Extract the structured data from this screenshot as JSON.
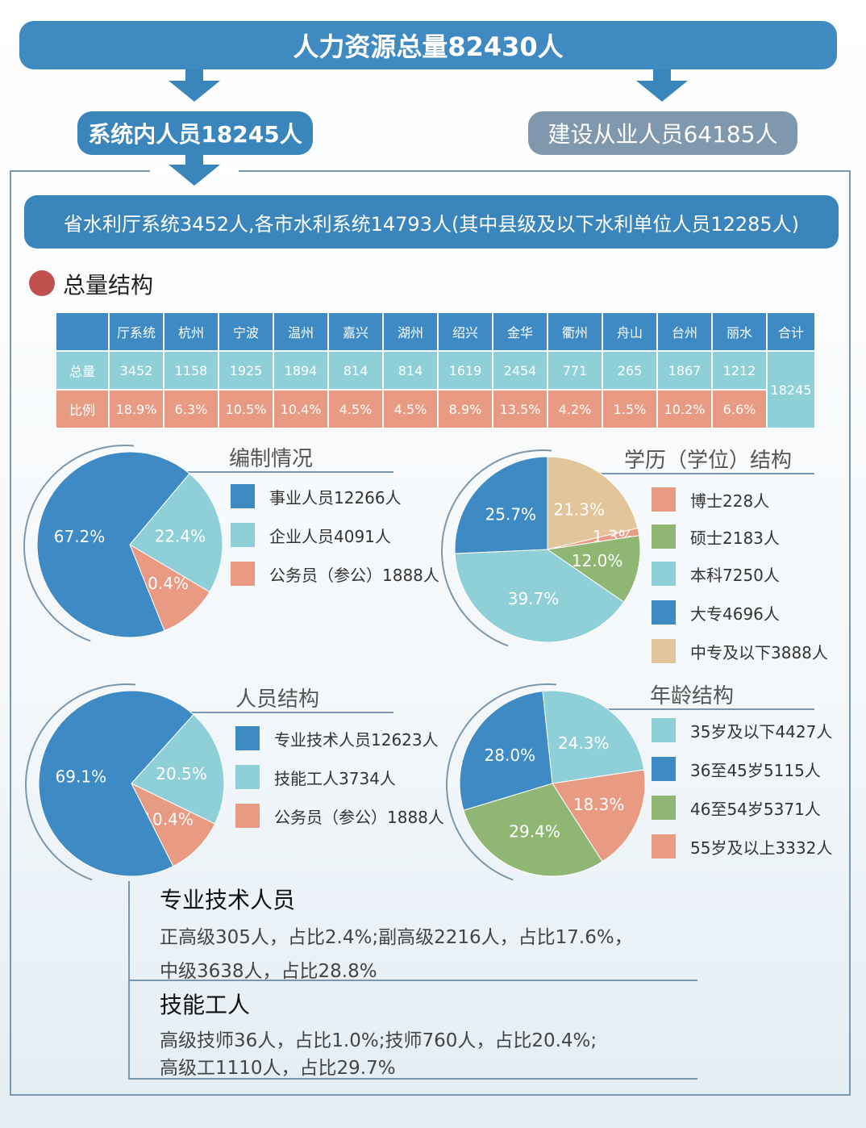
{
  "header": {
    "total": "人力资源总量82430人",
    "system": "系统内人员18245人",
    "construction": "建设从业人员64185人",
    "province": "省水利厅系统3452人,各市水利系统14793人(其中县级及以下水利单位人员12285人)"
  },
  "section_title": "总量结构",
  "table": {
    "columns": [
      "厅系统",
      "杭州",
      "宁波",
      "温州",
      "嘉兴",
      "湖州",
      "绍兴",
      "金华",
      "衢州",
      "舟山",
      "台州",
      "丽水",
      "合计"
    ],
    "row_total_label": "总量",
    "row_ratio_label": "比例",
    "totals": [
      "3452",
      "1158",
      "1925",
      "1894",
      "814",
      "814",
      "1619",
      "2454",
      "771",
      "265",
      "1867",
      "1212"
    ],
    "ratios": [
      "18.9%",
      "6.3%",
      "10.5%",
      "10.4%",
      "4.5%",
      "4.5%",
      "8.9%",
      "13.5%",
      "4.2%",
      "1.5%",
      "10.2%",
      "6.6%"
    ],
    "grand_total": "18245"
  },
  "colors": {
    "blue": "#3e8ac4",
    "cyan": "#8ecfd8",
    "salmon": "#e99a82",
    "green": "#8fb673",
    "tan": "#e2c59a",
    "frame": "#7c97ad"
  },
  "chart_data": [
    {
      "type": "pie",
      "title": "编制情况",
      "slices": [
        {
          "name": "事业人员12266人",
          "value": 67.2,
          "label": "67.2%",
          "color": "#3e8ac4"
        },
        {
          "name": "企业人员4091人",
          "value": 22.4,
          "label": "22.4%",
          "color": "#8ecfd8"
        },
        {
          "name": "公务员（参公）1888人",
          "value": 10.4,
          "label": "10.4%",
          "color": "#e99a82"
        }
      ]
    },
    {
      "type": "pie",
      "title": "学历（学位）结构",
      "slices": [
        {
          "name": "博士228人",
          "value": 1.3,
          "label": "1.3%",
          "color": "#e99a82"
        },
        {
          "name": "硕士2183人",
          "value": 12.0,
          "label": "12.0%",
          "color": "#8fb673"
        },
        {
          "name": "本科7250人",
          "value": 39.7,
          "label": "39.7%",
          "color": "#8ecfd8"
        },
        {
          "name": "大专4696人",
          "value": 25.7,
          "label": "25.7%",
          "color": "#3e8ac4"
        },
        {
          "name": "中专及以下3888人",
          "value": 21.3,
          "label": "21.3%",
          "color": "#e2c59a"
        }
      ]
    },
    {
      "type": "pie",
      "title": "人员结构",
      "slices": [
        {
          "name": "专业技术人员12623人",
          "value": 69.1,
          "label": "69.1%",
          "color": "#3e8ac4"
        },
        {
          "name": "技能工人3734人",
          "value": 20.5,
          "label": "20.5%",
          "color": "#8ecfd8"
        },
        {
          "name": "公务员（参公）1888人",
          "value": 10.4,
          "label": "10.4%",
          "color": "#e99a82"
        }
      ]
    },
    {
      "type": "pie",
      "title": "年龄结构",
      "slices": [
        {
          "name": "35岁及以下4427人",
          "value": 24.3,
          "label": "24.3%",
          "color": "#8ecfd8"
        },
        {
          "name": "36至45岁5115人",
          "value": 28.0,
          "label": "28.0%",
          "color": "#3e8ac4"
        },
        {
          "name": "46至54岁5371人",
          "value": 29.4,
          "label": "29.4%",
          "color": "#8fb673"
        },
        {
          "name": "55岁及以上3332人",
          "value": 18.3,
          "label": "18.3%",
          "color": "#e99a82"
        }
      ]
    }
  ],
  "notes": {
    "tech_title": "专业技术人员",
    "tech_line1": "正高级305人，占比2.4%;副高级2216人，占比17.6%，",
    "tech_line2": "中级3638人，占比28.8%",
    "skill_title": "技能工人",
    "skill_line1": "高级技师36人，占比1.0%;技师760人，占比20.4%;",
    "skill_line2": "高级工1110人，占比29.7%"
  }
}
